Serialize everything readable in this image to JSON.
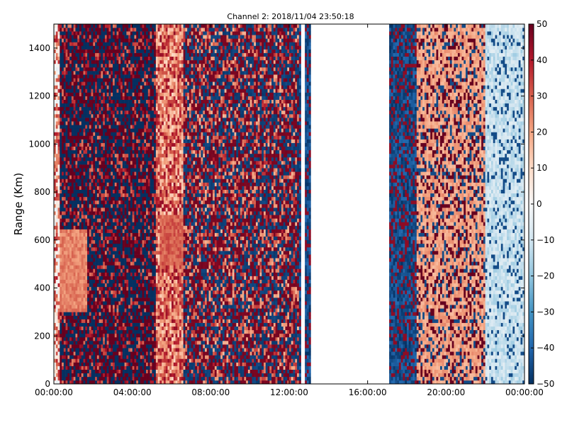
{
  "chart_data": {
    "type": "heatmap",
    "title": "Channel 2: 2018/11/04 23:50:18",
    "ylabel": "Range (Km)",
    "xlabel": "",
    "xlim": [
      0,
      24
    ],
    "ylim": [
      0,
      1500
    ],
    "x_ticks": [
      {
        "value": 0,
        "label": "00:00:00"
      },
      {
        "value": 4,
        "label": "04:00:00"
      },
      {
        "value": 8,
        "label": "08:00:00"
      },
      {
        "value": 12,
        "label": "12:00:00"
      },
      {
        "value": 16,
        "label": "16:00:00"
      },
      {
        "value": 20,
        "label": "20:00:00"
      },
      {
        "value": 24,
        "label": "00:00:00"
      }
    ],
    "y_ticks": [
      0,
      200,
      400,
      600,
      800,
      1000,
      1200,
      1400
    ],
    "colorbar": {
      "colormap": "RdBu_r",
      "vmin": -50,
      "vmax": 50,
      "ticks": [
        -50,
        -40,
        -30,
        -20,
        -10,
        0,
        10,
        20,
        30,
        40,
        50
      ]
    },
    "data_gaps_hours": [
      [
        12.55,
        12.8
      ],
      [
        13.05,
        17.05
      ]
    ],
    "grid": false
  }
}
